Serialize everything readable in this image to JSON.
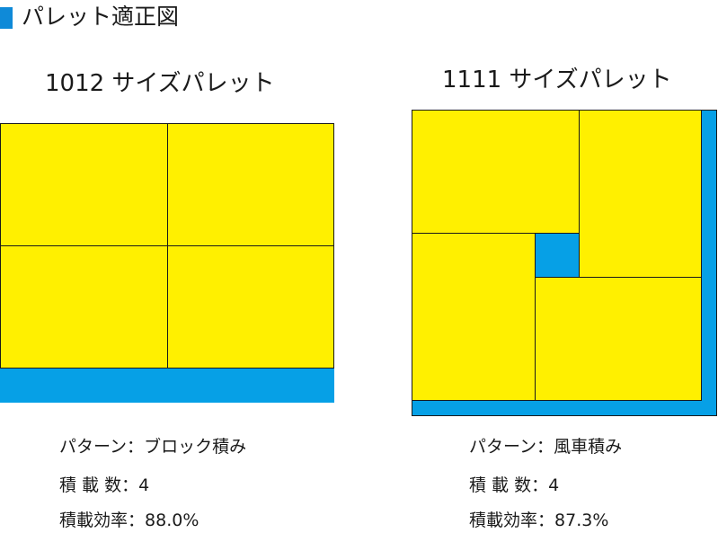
{
  "header": {
    "title": "パレット適正図"
  },
  "colors": {
    "box": "#fff000",
    "pallet": "#06a0e6",
    "line": "#1a1a1a",
    "accent": "#0f8ad8"
  },
  "pallets": [
    {
      "title": "1012 サイズパレット",
      "pattern_label": "パターン：",
      "pattern": "ブロック積み",
      "count_label": "積 載 数：",
      "count": "4",
      "efficiency_label": "積載効率：",
      "efficiency": "88.0%"
    },
    {
      "title": "1111 サイズパレット",
      "pattern_label": "パターン：",
      "pattern": "風車積み",
      "count_label": "積 載 数：",
      "count": "4",
      "efficiency_label": "積載効率：",
      "efficiency": "87.3%"
    }
  ]
}
